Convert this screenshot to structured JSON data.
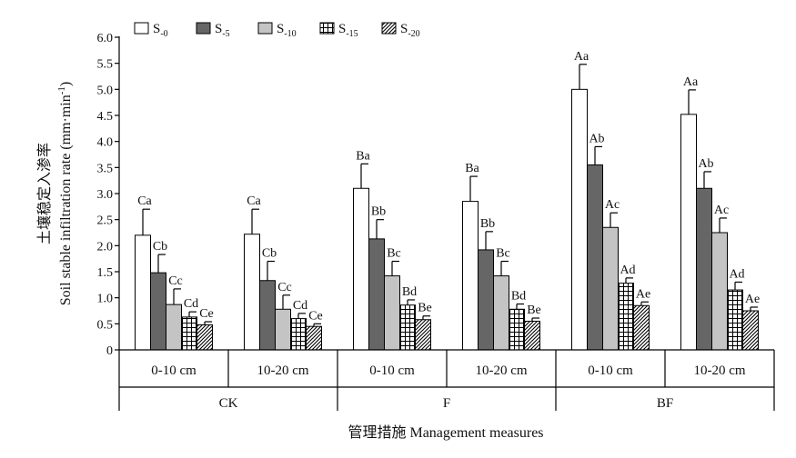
{
  "chart_data": {
    "type": "bar",
    "ylabel_cn": "土壤稳定入渗率",
    "ylabel_en": "Soil stable infiltration rate (mm·min",
    "ylabel_sup": "-1",
    "ylabel_close": ")",
    "xlabel": "管理措施 Management measures",
    "ylim": [
      0,
      6.0
    ],
    "y_ticks": [
      "0",
      "0.5",
      "1.0",
      "1.5",
      "2.0",
      "2.5",
      "3.0",
      "3.5",
      "4.0",
      "4.5",
      "5.0",
      "5.5",
      "6.0"
    ],
    "groups": [
      "CK",
      "F",
      "BF"
    ],
    "categories": [
      "0-10 cm",
      "10-20 cm",
      "0-10 cm",
      "10-20 cm",
      "0-10 cm",
      "10-20 cm"
    ],
    "legend_position": "top-left",
    "series": [
      {
        "name": "S",
        "sub": "-0",
        "pattern": "white",
        "values": [
          2.2,
          2.22,
          3.1,
          2.85,
          5.0,
          4.52
        ],
        "errors": [
          0.5,
          0.48,
          0.47,
          0.48,
          0.48,
          0.47
        ],
        "labels": [
          "Ca",
          "Ca",
          "Ba",
          "Ba",
          "Aa",
          "Aa"
        ]
      },
      {
        "name": "S",
        "sub": "-5",
        "pattern": "dark",
        "values": [
          1.48,
          1.33,
          2.13,
          1.92,
          3.55,
          3.1
        ],
        "errors": [
          0.35,
          0.37,
          0.37,
          0.35,
          0.35,
          0.32
        ],
        "labels": [
          "Cb",
          "Cb",
          "Bb",
          "Bb",
          "Ab",
          "Ab"
        ]
      },
      {
        "name": "S",
        "sub": "-10",
        "pattern": "light",
        "values": [
          0.87,
          0.78,
          1.42,
          1.42,
          2.35,
          2.25
        ],
        "errors": [
          0.3,
          0.27,
          0.28,
          0.28,
          0.28,
          0.28
        ],
        "labels": [
          "Cc",
          "Cc",
          "Bc",
          "Bc",
          "Ac",
          "Ac"
        ]
      },
      {
        "name": "S",
        "sub": "-15",
        "pattern": "grid",
        "values": [
          0.63,
          0.6,
          0.86,
          0.78,
          1.28,
          1.15
        ],
        "errors": [
          0.1,
          0.1,
          0.1,
          0.1,
          0.1,
          0.15
        ],
        "labels": [
          "Cd",
          "Cd",
          "Bd",
          "Bd",
          "Ad",
          "Ad"
        ]
      },
      {
        "name": "S",
        "sub": "-20",
        "pattern": "hatch",
        "values": [
          0.48,
          0.45,
          0.58,
          0.55,
          0.85,
          0.75
        ],
        "errors": [
          0.06,
          0.05,
          0.07,
          0.06,
          0.07,
          0.07
        ],
        "labels": [
          "Ce",
          "Ce",
          "Be",
          "Be",
          "Ae",
          "Ae"
        ]
      }
    ]
  }
}
